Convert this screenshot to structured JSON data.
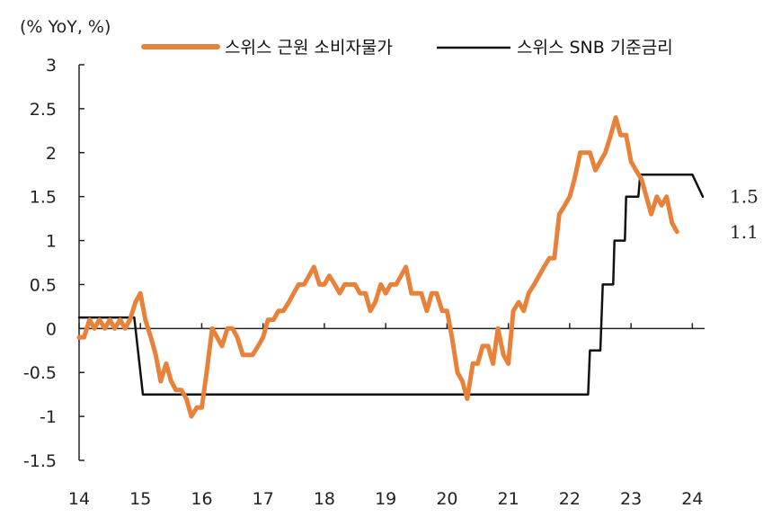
{
  "chart_data": {
    "type": "line",
    "unit_label": "(% YoY, %)",
    "ylim": [
      -1.5,
      3
    ],
    "y_ticks": [
      "3",
      "2.5",
      "2",
      "1.5",
      "1",
      "0.5",
      "0",
      "-0.5",
      "-1",
      "-1.5"
    ],
    "y_tick_values": [
      3,
      2.5,
      2,
      1.5,
      1,
      0.5,
      0,
      -0.5,
      -1,
      -1.5
    ],
    "xlim": [
      2014,
      2024.2
    ],
    "x_ticks": [
      "14",
      "15",
      "16",
      "17",
      "18",
      "19",
      "20",
      "21",
      "22",
      "23",
      "24"
    ],
    "x_tick_values": [
      2014,
      2015,
      2016,
      2017,
      2018,
      2019,
      2020,
      2021,
      2022,
      2023,
      2024
    ],
    "colors": {
      "core_cpi": "#E8823A",
      "policy_rate": "#111111"
    },
    "series": [
      {
        "name": "스위스 근원 소비자물가",
        "key": "core_cpi",
        "end_label": "1.1",
        "points": [
          [
            2014.0,
            -0.1
          ],
          [
            2014.08,
            -0.1
          ],
          [
            2014.17,
            0.1
          ],
          [
            2014.25,
            0.0
          ],
          [
            2014.33,
            0.1
          ],
          [
            2014.42,
            0.0
          ],
          [
            2014.5,
            0.1
          ],
          [
            2014.58,
            0.0
          ],
          [
            2014.67,
            0.1
          ],
          [
            2014.75,
            0.0
          ],
          [
            2014.83,
            0.1
          ],
          [
            2014.92,
            0.3
          ],
          [
            2015.0,
            0.4
          ],
          [
            2015.08,
            0.1
          ],
          [
            2015.17,
            -0.1
          ],
          [
            2015.25,
            -0.3
          ],
          [
            2015.33,
            -0.6
          ],
          [
            2015.42,
            -0.4
          ],
          [
            2015.5,
            -0.6
          ],
          [
            2015.58,
            -0.7
          ],
          [
            2015.67,
            -0.7
          ],
          [
            2015.75,
            -0.8
          ],
          [
            2015.83,
            -1.0
          ],
          [
            2015.92,
            -0.9
          ],
          [
            2016.0,
            -0.9
          ],
          [
            2016.08,
            -0.5
          ],
          [
            2016.17,
            0.0
          ],
          [
            2016.25,
            -0.1
          ],
          [
            2016.33,
            -0.2
          ],
          [
            2016.42,
            0.0
          ],
          [
            2016.5,
            0.0
          ],
          [
            2016.58,
            -0.1
          ],
          [
            2016.67,
            -0.3
          ],
          [
            2016.75,
            -0.3
          ],
          [
            2016.83,
            -0.3
          ],
          [
            2016.92,
            -0.2
          ],
          [
            2017.0,
            -0.1
          ],
          [
            2017.08,
            0.1
          ],
          [
            2017.17,
            0.1
          ],
          [
            2017.25,
            0.2
          ],
          [
            2017.33,
            0.2
          ],
          [
            2017.42,
            0.3
          ],
          [
            2017.5,
            0.4
          ],
          [
            2017.58,
            0.5
          ],
          [
            2017.67,
            0.5
          ],
          [
            2017.75,
            0.6
          ],
          [
            2017.83,
            0.7
          ],
          [
            2017.92,
            0.5
          ],
          [
            2018.0,
            0.5
          ],
          [
            2018.08,
            0.6
          ],
          [
            2018.17,
            0.5
          ],
          [
            2018.25,
            0.4
          ],
          [
            2018.33,
            0.5
          ],
          [
            2018.42,
            0.5
          ],
          [
            2018.5,
            0.5
          ],
          [
            2018.58,
            0.4
          ],
          [
            2018.67,
            0.4
          ],
          [
            2018.75,
            0.2
          ],
          [
            2018.83,
            0.3
          ],
          [
            2018.92,
            0.5
          ],
          [
            2019.0,
            0.4
          ],
          [
            2019.08,
            0.5
          ],
          [
            2019.17,
            0.5
          ],
          [
            2019.25,
            0.6
          ],
          [
            2019.33,
            0.7
          ],
          [
            2019.42,
            0.4
          ],
          [
            2019.5,
            0.4
          ],
          [
            2019.58,
            0.4
          ],
          [
            2019.67,
            0.2
          ],
          [
            2019.75,
            0.4
          ],
          [
            2019.83,
            0.4
          ],
          [
            2019.92,
            0.2
          ],
          [
            2020.0,
            0.2
          ],
          [
            2020.08,
            -0.1
          ],
          [
            2020.17,
            -0.5
          ],
          [
            2020.25,
            -0.6
          ],
          [
            2020.33,
            -0.8
          ],
          [
            2020.42,
            -0.4
          ],
          [
            2020.5,
            -0.4
          ],
          [
            2020.58,
            -0.2
          ],
          [
            2020.67,
            -0.2
          ],
          [
            2020.75,
            -0.4
          ],
          [
            2020.83,
            0.0
          ],
          [
            2020.92,
            -0.3
          ],
          [
            2021.0,
            -0.4
          ],
          [
            2021.08,
            0.2
          ],
          [
            2021.17,
            0.3
          ],
          [
            2021.25,
            0.2
          ],
          [
            2021.33,
            0.4
          ],
          [
            2021.42,
            0.5
          ],
          [
            2021.5,
            0.6
          ],
          [
            2021.58,
            0.7
          ],
          [
            2021.67,
            0.8
          ],
          [
            2021.75,
            0.8
          ],
          [
            2021.83,
            1.3
          ],
          [
            2021.92,
            1.4
          ],
          [
            2022.0,
            1.5
          ],
          [
            2022.08,
            1.7
          ],
          [
            2022.17,
            2.0
          ],
          [
            2022.25,
            2.0
          ],
          [
            2022.33,
            2.0
          ],
          [
            2022.42,
            1.8
          ],
          [
            2022.5,
            1.9
          ],
          [
            2022.58,
            2.0
          ],
          [
            2022.67,
            2.2
          ],
          [
            2022.75,
            2.4
          ],
          [
            2022.83,
            2.2
          ],
          [
            2022.92,
            2.2
          ],
          [
            2023.0,
            1.9
          ],
          [
            2023.08,
            1.8
          ],
          [
            2023.17,
            1.7
          ],
          [
            2023.25,
            1.5
          ],
          [
            2023.33,
            1.3
          ],
          [
            2023.42,
            1.5
          ],
          [
            2023.5,
            1.4
          ],
          [
            2023.58,
            1.5
          ],
          [
            2023.67,
            1.2
          ],
          [
            2023.75,
            1.1
          ]
        ]
      },
      {
        "name": "스위스 SNB 기준금리",
        "key": "policy_rate",
        "end_label": "1.5",
        "points": [
          [
            2014.0,
            0.125
          ],
          [
            2014.9,
            0.125
          ],
          [
            2015.04,
            -0.75
          ],
          [
            2022.3,
            -0.75
          ],
          [
            2022.33,
            -0.25
          ],
          [
            2022.5,
            -0.25
          ],
          [
            2022.54,
            0.5
          ],
          [
            2022.71,
            0.5
          ],
          [
            2022.73,
            1.0
          ],
          [
            2022.9,
            1.0
          ],
          [
            2022.92,
            1.5
          ],
          [
            2023.12,
            1.5
          ],
          [
            2023.15,
            1.75
          ],
          [
            2024.0,
            1.75
          ],
          [
            2024.17,
            1.5
          ]
        ]
      }
    ]
  }
}
